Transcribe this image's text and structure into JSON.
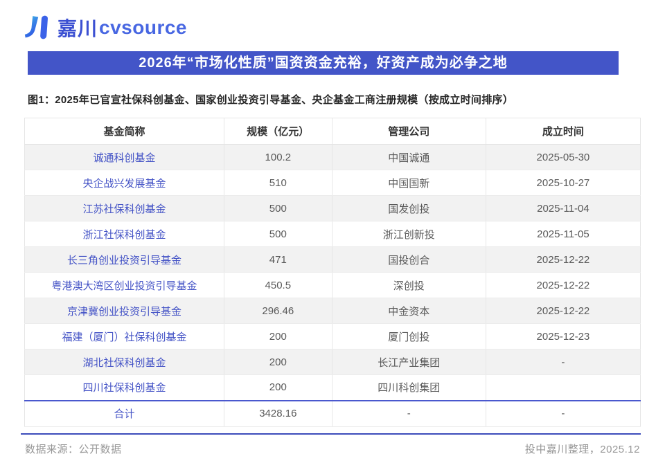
{
  "logo": {
    "brand_cn": "嘉川",
    "brand_en": "cvsource"
  },
  "banner": {
    "title": "2026年“市场化性质”国资资金充裕，好资产成为必争之地"
  },
  "figure_caption": "图1：2025年已官宣社保科创基金、国家创业投资引导基金、央企基金工商注册规模（按成立时间排序）",
  "colors": {
    "accent": "#4355c8",
    "link": "#4453c6",
    "divider": "#3c4cba",
    "row_stripe": "#f2f2f2"
  },
  "table": {
    "columns": [
      "基金简称",
      "规模（亿元）",
      "管理公司",
      "成立时间"
    ],
    "rows": [
      {
        "fund": "诚通科创基金",
        "scale": "100.2",
        "manager": "中国诚通",
        "date": "2025-05-30"
      },
      {
        "fund": "央企战兴发展基金",
        "scale": "510",
        "manager": "中国国新",
        "date": "2025-10-27"
      },
      {
        "fund": "江苏社保科创基金",
        "scale": "500",
        "manager": "国发创投",
        "date": "2025-11-04"
      },
      {
        "fund": "浙江社保科创基金",
        "scale": "500",
        "manager": "浙江创新投",
        "date": "2025-11-05"
      },
      {
        "fund": "长三角创业投资引导基金",
        "scale": "471",
        "manager": "国投创合",
        "date": "2025-12-22"
      },
      {
        "fund": "粤港澳大湾区创业投资引导基金",
        "scale": "450.5",
        "manager": "深创投",
        "date": "2025-12-22"
      },
      {
        "fund": "京津冀创业投资引导基金",
        "scale": "296.46",
        "manager": "中金资本",
        "date": "2025-12-22"
      },
      {
        "fund": "福建（厦门）社保科创基金",
        "scale": "200",
        "manager": "厦门创投",
        "date": "2025-12-23"
      },
      {
        "fund": "湖北社保科创基金",
        "scale": "200",
        "manager": "长江产业集团",
        "date": "-"
      },
      {
        "fund": "四川社保科创基金",
        "scale": "200",
        "manager": "四川科创集团",
        "date": ""
      }
    ],
    "total": {
      "label": "合计",
      "scale": "3428.16",
      "manager": "-",
      "date": "-"
    }
  },
  "footer": {
    "source": "数据来源：公开数据",
    "credit": "投中嘉川整理，2025.12"
  }
}
